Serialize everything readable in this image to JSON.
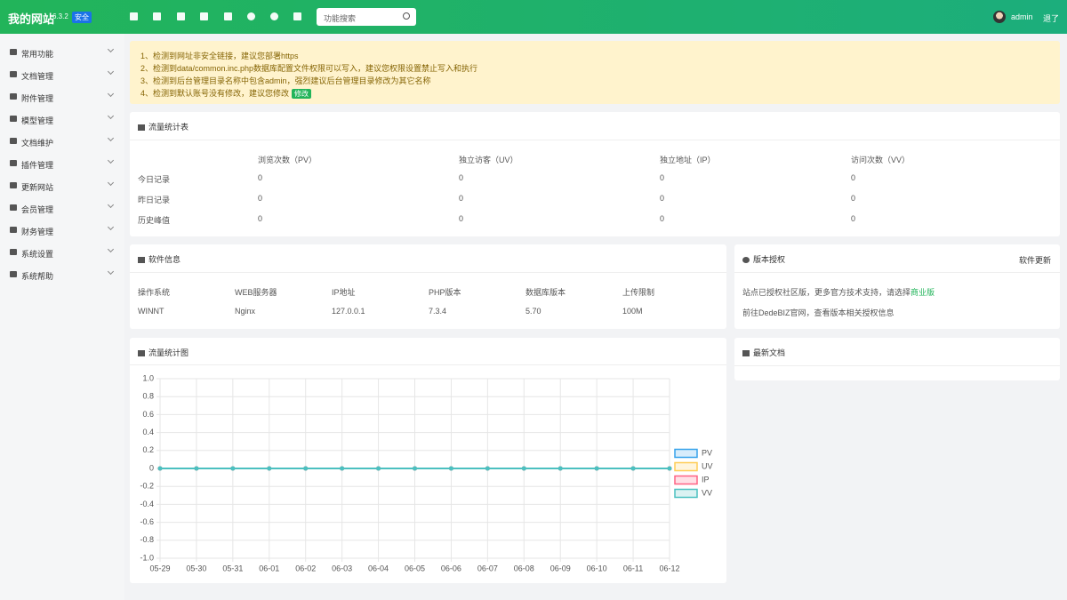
{
  "header": {
    "site_name": "我的网站",
    "version": "6.3.2",
    "badge": "安全",
    "search_placeholder": "功能搜索",
    "user": "admin",
    "logout": "退了"
  },
  "sidebar": [
    "常用功能",
    "文档管理",
    "附件管理",
    "模型管理",
    "文档维护",
    "插件管理",
    "更新网站",
    "会员管理",
    "财务管理",
    "系统设置",
    "系统帮助"
  ],
  "alerts": {
    "items": [
      "1、检测到网址非安全链接，建议您部署https",
      "2、检测到data/common.inc.php数据库配置文件权限可以写入，建议您权限设置禁止写入和执行",
      "3、检测到后台管理目录名称中包含admin，强烈建议后台管理目录修改为其它名称",
      "4、检测到默认账号没有修改，建议您修改"
    ],
    "fix_button": "修改"
  },
  "traffic_table": {
    "title": "流量统计表",
    "columns": [
      "浏览次数（PV）",
      "独立访客（UV）",
      "独立地址（IP）",
      "访问次数（VV）"
    ],
    "rows": [
      {
        "label": "今日记录",
        "values": [
          0,
          0,
          0,
          0
        ]
      },
      {
        "label": "昨日记录",
        "values": [
          0,
          0,
          0,
          0
        ]
      },
      {
        "label": "历史峰值",
        "values": [
          0,
          0,
          0,
          0
        ]
      }
    ]
  },
  "software_info": {
    "title": "软件信息",
    "headers": [
      "操作系统",
      "WEB服务器",
      "IP地址",
      "PHP版本",
      "数据库版本",
      "上传限制"
    ],
    "values": [
      "WINNT",
      "Nginx",
      "127.0.0.1",
      "7.3.4",
      "5.70",
      "100M"
    ]
  },
  "license": {
    "title": "版本授权",
    "action": "软件更新",
    "line1": "站点已授权社区版，更多官方技术支持，请选择",
    "line1_link": "商业版",
    "line2": "前往DedeBIZ官网，查看版本相关授权信息"
  },
  "latest_docs": {
    "title": "最新文档"
  },
  "chart_data": {
    "type": "line",
    "title": "流量统计图",
    "categories": [
      "05-29",
      "05-30",
      "05-31",
      "06-01",
      "06-02",
      "06-03",
      "06-04",
      "06-05",
      "06-06",
      "06-07",
      "06-08",
      "06-09",
      "06-10",
      "06-11",
      "06-12"
    ],
    "series": [
      {
        "name": "PV",
        "color": "#36a2eb",
        "values": [
          0,
          0,
          0,
          0,
          0,
          0,
          0,
          0,
          0,
          0,
          0,
          0,
          0,
          0,
          0
        ]
      },
      {
        "name": "UV",
        "color": "#ffcd56",
        "values": [
          0,
          0,
          0,
          0,
          0,
          0,
          0,
          0,
          0,
          0,
          0,
          0,
          0,
          0,
          0
        ]
      },
      {
        "name": "IP",
        "color": "#ff6384",
        "values": [
          0,
          0,
          0,
          0,
          0,
          0,
          0,
          0,
          0,
          0,
          0,
          0,
          0,
          0,
          0
        ]
      },
      {
        "name": "VV",
        "color": "#4bc0c0",
        "values": [
          0,
          0,
          0,
          0,
          0,
          0,
          0,
          0,
          0,
          0,
          0,
          0,
          0,
          0,
          0
        ]
      }
    ],
    "ylim": [
      -1,
      1
    ],
    "yticks": [
      {
        "value": -1,
        "label": "-1.0"
      },
      -0.8,
      -0.6,
      -0.4,
      -0.2,
      0,
      0.2,
      0.4,
      0.6,
      0.8,
      {
        "value": 1,
        "label": "1.0"
      }
    ],
    "grid": true,
    "legend": "right"
  }
}
